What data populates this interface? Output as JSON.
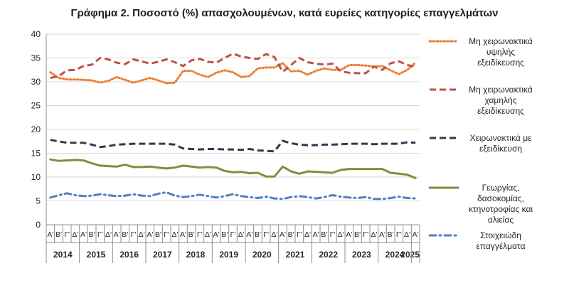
{
  "chart_data": {
    "type": "line",
    "title": "Γράφημα 2. Ποσοστό (%) απασχολουμένων, κατά ευρείες κατηγορίες επαγγελμάτων",
    "ylim": [
      0,
      40
    ],
    "y_ticks": [
      0,
      5,
      10,
      15,
      20,
      25,
      30,
      35,
      40
    ],
    "grid": "horizontal",
    "legend": "right",
    "x": [
      "2014 Α'",
      "2014 Β'",
      "2014 Γ'",
      "2014 Δ'",
      "2015 Α'",
      "2015 Β'",
      "2015 Γ'",
      "2015 Δ'",
      "2016 Α'",
      "2016 Β'",
      "2016 Γ'",
      "2016 Δ'",
      "2017 Α'",
      "2017 Β'",
      "2017 Γ'",
      "2017 Δ'",
      "2018 Α'",
      "2018 Β'",
      "2018 Γ'",
      "2018 Δ'",
      "2019 Α'",
      "2019 Β'",
      "2019 Γ'",
      "2019 Δ'",
      "2020 Α'",
      "2020 Β'",
      "2020 Γ'",
      "2020 Δ'",
      "2021 Α'",
      "2021 Β'",
      "2021 Γ'",
      "2021 Δ'",
      "2022 Α'",
      "2022 Β'",
      "2022 Γ'",
      "2022 Δ'",
      "2023 Α'",
      "2023 Β'",
      "2023 Γ'",
      "2023 Δ'",
      "2024 Α'",
      "2024 Β'",
      "2024 Γ'",
      "2024 Δ'",
      "2025 Α'"
    ],
    "quarter_labels": [
      "Α'",
      "Β'",
      "Γ'",
      "Δ'",
      "Α'",
      "Β'",
      "Γ'",
      "Δ'",
      "Α'",
      "Β'",
      "Γ'",
      "Δ'",
      "Α'",
      "Β'",
      "Γ'",
      "Δ'",
      "Α'",
      "Β'",
      "Γ'",
      "Δ'",
      "Α'",
      "Β'",
      "Γ'",
      "Δ'",
      "Α'",
      "Β'",
      "Γ'",
      "Δ'",
      "Α'",
      "Β'",
      "Γ'",
      "Δ'",
      "Α'",
      "Β'",
      "Γ'",
      "Δ'",
      "Α'",
      "Β'",
      "Γ'",
      "Δ'",
      "Α'",
      "Β'",
      "Γ'",
      "Δ'",
      "Α'"
    ],
    "year_labels": [
      "2014",
      "2015",
      "2016",
      "2017",
      "2018",
      "2019",
      "2020",
      "2021",
      "2022",
      "2023",
      "2024",
      "2025"
    ],
    "series": [
      {
        "name": "Μη χειρωνακτικά υψηλής εξειδίκευσης",
        "legend_lines": [
          "Μη χειρωνακτικά",
          "υψηλής",
          "εξειδίκευσης"
        ],
        "color": "#ed7d31",
        "style": "dotted",
        "values": [
          32.0,
          30.8,
          30.5,
          30.5,
          30.4,
          30.3,
          29.8,
          30.2,
          31.0,
          30.4,
          29.8,
          30.3,
          30.8,
          30.3,
          29.7,
          29.8,
          32.3,
          32.3,
          31.5,
          31.0,
          31.9,
          32.4,
          32.0,
          31.0,
          31.2,
          32.8,
          33.0,
          33.0,
          33.9,
          32.2,
          32.3,
          31.5,
          32.3,
          32.8,
          32.5,
          32.5,
          33.5,
          33.5,
          33.4,
          33.2,
          33.3,
          32.4,
          31.6,
          32.5,
          34.0
        ]
      },
      {
        "name": "Μη χειρωνακτικά χαμηλής εξειδίκευσης",
        "legend_lines": [
          "Μη χειρωνακτικά",
          "χαμηλής",
          "εξειδίκευσης"
        ],
        "color": "#c0504d",
        "style": "dashed",
        "values": [
          30.8,
          31.2,
          32.4,
          32.5,
          33.3,
          33.6,
          35.0,
          34.7,
          34.0,
          33.7,
          34.7,
          34.3,
          33.8,
          34.2,
          34.7,
          34.1,
          33.3,
          34.5,
          34.8,
          34.2,
          34.0,
          35.0,
          35.9,
          35.3,
          35.0,
          34.8,
          35.8,
          35.2,
          32.1,
          33.5,
          35.0,
          34.1,
          33.8,
          33.6,
          33.8,
          32.2,
          31.9,
          31.8,
          31.8,
          33.2,
          32.5,
          33.9,
          34.3,
          33.5,
          33.2
        ]
      },
      {
        "name": "Χειρωνακτικά με εξειδίκευση",
        "legend_lines": [
          "Χειρωνακτικά με",
          "εξειδίκευση"
        ],
        "color": "#403152",
        "style": "dashed",
        "values": [
          17.8,
          17.5,
          17.2,
          17.2,
          17.2,
          16.8,
          16.3,
          16.5,
          16.8,
          16.9,
          17.0,
          17.0,
          17.0,
          17.0,
          17.0,
          16.8,
          16.0,
          15.9,
          15.8,
          15.9,
          15.9,
          15.8,
          15.8,
          15.7,
          15.9,
          15.6,
          15.5,
          15.4,
          17.6,
          17.1,
          16.8,
          16.7,
          16.7,
          16.8,
          16.8,
          16.9,
          17.0,
          17.0,
          17.0,
          16.9,
          17.0,
          17.0,
          17.0,
          17.3,
          17.2
        ]
      },
      {
        "name": "Γεωργίας, δασοκομίας, κτηνοτροφίας και αλιείας",
        "legend_lines": [
          "Γεωργίας,",
          "δασοκομίας,",
          "κτηνοτροφίας και",
          "αλιείας"
        ],
        "color": "#77933c",
        "style": "solid",
        "values": [
          13.7,
          13.4,
          13.5,
          13.6,
          13.5,
          12.9,
          12.4,
          12.3,
          12.2,
          12.6,
          12.1,
          12.1,
          12.2,
          12.0,
          11.8,
          12.0,
          12.4,
          12.2,
          12.0,
          12.1,
          12.0,
          11.3,
          11.0,
          11.1,
          10.8,
          10.9,
          10.1,
          10.1,
          12.2,
          11.2,
          10.7,
          11.2,
          11.1,
          11.0,
          10.9,
          11.5,
          11.7,
          11.7,
          11.7,
          11.7,
          11.7,
          10.9,
          10.7,
          10.5,
          9.8
        ]
      },
      {
        "name": "Στοιχειώδη επαγγέλματα",
        "legend_lines": [
          "Στοιχειώδη",
          "επαγγέλματα"
        ],
        "color": "#4f81bd",
        "style": "dashdot",
        "values": [
          5.7,
          6.2,
          6.6,
          6.2,
          6.0,
          6.1,
          6.4,
          6.2,
          6.0,
          6.1,
          6.4,
          6.1,
          6.0,
          6.5,
          6.8,
          6.1,
          5.8,
          6.0,
          6.3,
          6.0,
          5.7,
          6.0,
          6.4,
          6.0,
          5.8,
          5.6,
          5.9,
          5.5,
          5.4,
          5.8,
          6.0,
          5.8,
          5.5,
          5.8,
          6.2,
          5.9,
          5.7,
          5.6,
          5.8,
          5.4,
          5.4,
          5.6,
          5.9,
          5.6,
          5.5
        ]
      }
    ]
  }
}
